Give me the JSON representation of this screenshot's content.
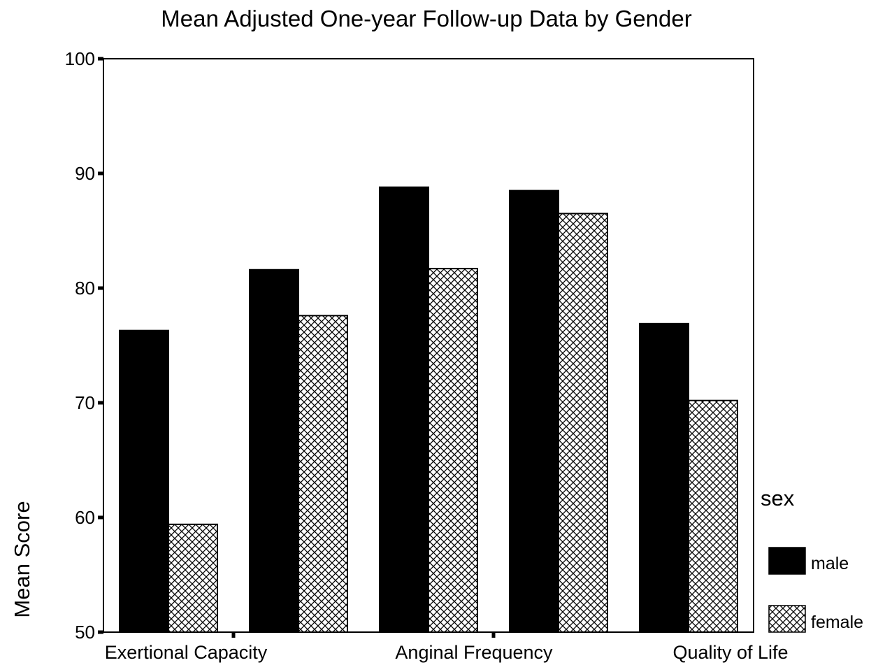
{
  "chart_data": {
    "type": "bar",
    "title": "Mean Adjusted One-year Follow-up Data by Gender",
    "xlabel": "",
    "ylabel": "Mean Score",
    "ylim": [
      50,
      100
    ],
    "yticks": [
      "50",
      "60",
      "70",
      "80",
      "90",
      "100"
    ],
    "category_labels": [
      "Exertional Capacity",
      "Anginal Frequency",
      "Quality of Life"
    ],
    "categories": [
      "1",
      "2",
      "3",
      "4",
      "5"
    ],
    "series": [
      {
        "name": "male",
        "values": [
          76.3,
          81.6,
          88.8,
          88.5,
          76.9
        ],
        "fill": "#000000"
      },
      {
        "name": "female",
        "values": [
          59.4,
          77.6,
          81.7,
          86.5,
          70.2
        ],
        "fill": "crosshatch"
      }
    ],
    "legend": {
      "title": "sex",
      "position": "right",
      "items": [
        "male",
        "female"
      ]
    },
    "grid": false
  }
}
